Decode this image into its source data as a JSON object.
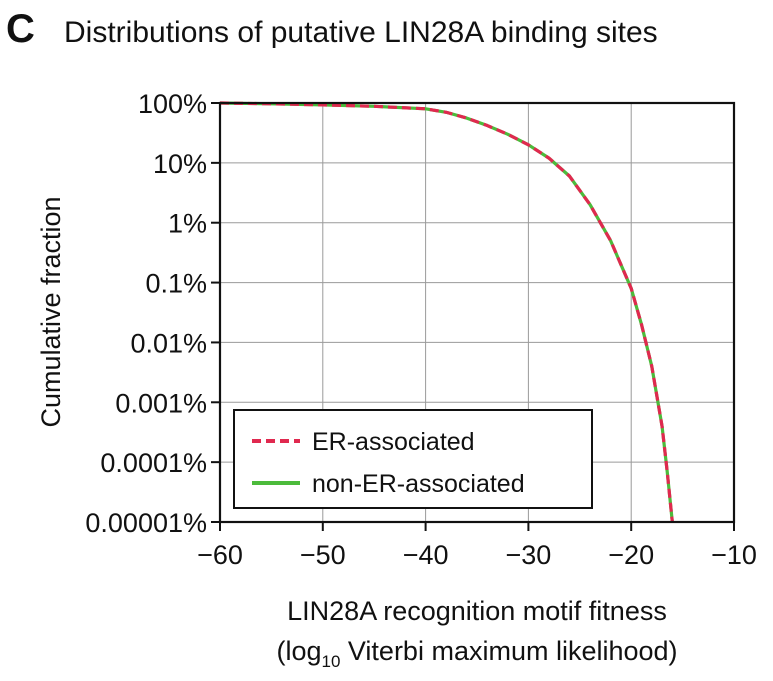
{
  "panel_label": "C",
  "chart_data": {
    "type": "line",
    "title": "Distributions of putative LIN28A binding sites",
    "xlabel_line1": "LIN28A recognition motif fitness",
    "xlabel_line2_prefix": "(log",
    "xlabel_line2_sub": "10",
    "xlabel_line2_suffix": " Viterbi maximum likelihood)",
    "ylabel": "Cumulative fraction",
    "xlim": [
      -60,
      -10
    ],
    "ylim": [
      1e-07,
      1
    ],
    "yscale": "log",
    "grid": true,
    "legend_position": "bottom-left",
    "x_ticks": [
      -60,
      -50,
      -40,
      -30,
      -20,
      -10
    ],
    "x_tick_labels": [
      "−60",
      "−50",
      "−40",
      "−30",
      "−20",
      "−10"
    ],
    "y_ticks": [
      1,
      0.1,
      0.01,
      0.001,
      0.0001,
      1e-05,
      1e-06,
      1e-07
    ],
    "y_tick_labels": [
      "100%",
      "10%",
      "1%",
      "0.1%",
      "0.01%",
      "0.001%",
      "0.0001%",
      "0.00001%"
    ],
    "series": [
      {
        "name": "ER-associated",
        "color": "#e0294f",
        "style": "dashed",
        "points": [
          [
            -60,
            1.0
          ],
          [
            -55,
            0.97
          ],
          [
            -50,
            0.93
          ],
          [
            -45,
            0.88
          ],
          [
            -40,
            0.8
          ],
          [
            -38,
            0.7
          ],
          [
            -36,
            0.56
          ],
          [
            -34,
            0.42
          ],
          [
            -32,
            0.3
          ],
          [
            -30,
            0.2
          ],
          [
            -28,
            0.12
          ],
          [
            -26,
            0.06
          ],
          [
            -24,
            0.02
          ],
          [
            -22,
            0.005
          ],
          [
            -20,
            0.0008
          ],
          [
            -19,
            0.0002
          ],
          [
            -18,
            4e-05
          ],
          [
            -17,
            4e-06
          ],
          [
            -16.5,
            7e-07
          ],
          [
            -16,
            1e-07
          ]
        ]
      },
      {
        "name": "non-ER-associated",
        "color": "#4cbb3b",
        "style": "solid",
        "points": [
          [
            -60,
            1.0
          ],
          [
            -55,
            0.97
          ],
          [
            -50,
            0.93
          ],
          [
            -45,
            0.88
          ],
          [
            -40,
            0.8
          ],
          [
            -38,
            0.7
          ],
          [
            -36,
            0.56
          ],
          [
            -34,
            0.42
          ],
          [
            -32,
            0.3
          ],
          [
            -30,
            0.2
          ],
          [
            -28,
            0.12
          ],
          [
            -26,
            0.06
          ],
          [
            -24,
            0.02
          ],
          [
            -22,
            0.005
          ],
          [
            -20,
            0.0008
          ],
          [
            -19,
            0.0002
          ],
          [
            -18,
            4e-05
          ],
          [
            -17,
            4e-06
          ],
          [
            -16.5,
            7e-07
          ],
          [
            -16,
            1e-07
          ]
        ]
      }
    ]
  }
}
